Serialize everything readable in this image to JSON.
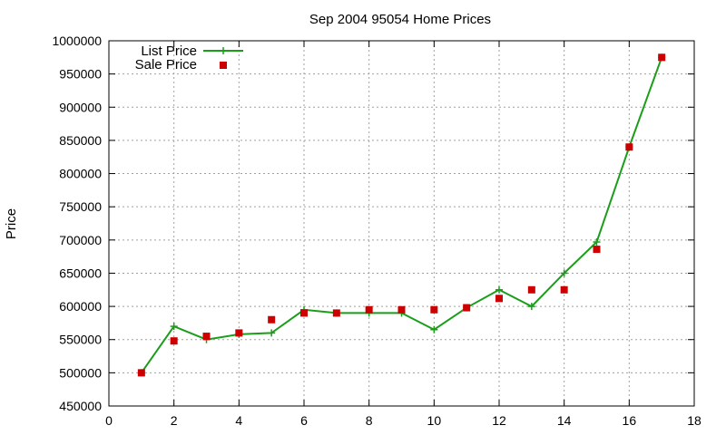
{
  "chart_data": {
    "type": "line",
    "title": "Sep 2004 95054 Home Prices",
    "xlabel": "",
    "ylabel": "Price",
    "xlim": [
      0,
      18
    ],
    "ylim": [
      450000,
      1000000
    ],
    "x_ticks": [
      "0",
      "2",
      "4",
      "6",
      "8",
      "10",
      "12",
      "14",
      "16",
      "18"
    ],
    "y_ticks": [
      "450000",
      "500000",
      "550000",
      "600000",
      "650000",
      "700000",
      "750000",
      "800000",
      "850000",
      "900000",
      "950000",
      "1000000"
    ],
    "grid": true,
    "legend_position": "top-left",
    "series": [
      {
        "name": "List Price",
        "style": "line-with-plus-markers",
        "color": "#1a9e1a",
        "x": [
          1,
          2,
          3,
          4,
          5,
          6,
          7,
          8,
          9,
          10,
          11,
          12,
          13,
          14,
          15,
          16,
          17
        ],
        "y": [
          500000,
          570000,
          550000,
          558000,
          560000,
          595000,
          590000,
          590000,
          590000,
          565000,
          598000,
          625000,
          600000,
          650000,
          697000,
          840000,
          975000
        ]
      },
      {
        "name": "Sale Price",
        "style": "square-markers",
        "color": "#cc0000",
        "x": [
          1,
          2,
          3,
          4,
          5,
          6,
          7,
          8,
          9,
          10,
          11,
          12,
          13,
          14,
          15,
          16,
          17
        ],
        "y": [
          500000,
          548000,
          555000,
          560000,
          580000,
          590000,
          590000,
          595000,
          595000,
          595000,
          598000,
          612000,
          625000,
          625000,
          686000,
          840000,
          975000
        ]
      }
    ]
  }
}
